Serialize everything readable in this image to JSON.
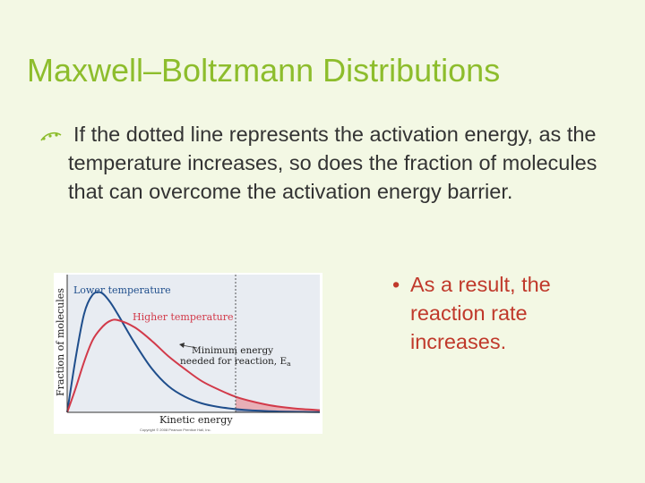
{
  "slide": {
    "title": "Maxwell–Boltzmann Distributions",
    "main_bullet": "If the dotted line represents the activation energy, as the temperature increases, so does the fraction of molecules that can overcome the activation energy barrier.",
    "sub_bullet": "As a result, the reaction rate increases.",
    "bullet_char": "•",
    "colors": {
      "title": "#8dbd2c",
      "body_text": "#333333",
      "sub_text": "#c0392b",
      "background": "#f3f8e4"
    }
  },
  "chart_data": {
    "type": "line",
    "title": "",
    "xlabel": "Kinetic energy",
    "ylabel": "Fraction of molecules",
    "series": [
      {
        "name": "Lower temperature",
        "color": "#1f4e8c",
        "x": [
          0,
          0.25,
          0.5,
          0.75,
          1.0,
          1.25,
          1.5,
          2.0,
          2.5,
          3.0,
          3.5,
          4.0,
          4.5,
          5.0,
          5.5,
          6.0,
          6.5,
          7.0,
          7.5
        ],
        "y": [
          0,
          0.45,
          0.82,
          0.98,
          1.0,
          0.93,
          0.82,
          0.58,
          0.37,
          0.22,
          0.13,
          0.075,
          0.045,
          0.027,
          0.016,
          0.01,
          0.006,
          0.004,
          0.002
        ]
      },
      {
        "name": "Higher temperature",
        "color": "#d23a4a",
        "x": [
          0,
          0.25,
          0.5,
          0.75,
          1.0,
          1.25,
          1.5,
          2.0,
          2.5,
          3.0,
          3.5,
          4.0,
          4.5,
          5.0,
          5.5,
          6.0,
          6.5,
          7.0,
          7.5
        ],
        "y": [
          0,
          0.2,
          0.42,
          0.6,
          0.7,
          0.76,
          0.77,
          0.71,
          0.6,
          0.47,
          0.36,
          0.26,
          0.19,
          0.13,
          0.09,
          0.06,
          0.04,
          0.027,
          0.018
        ]
      }
    ],
    "threshold": {
      "x": 5.0,
      "label_line1": "Minimum energy",
      "label_line2": "needed for reaction, E",
      "label_sub": "a"
    },
    "xlim": [
      0,
      7.5
    ],
    "ylim": [
      0,
      1.15
    ],
    "grid": false,
    "copyright": "Copyright © 2008 Pearson Prentice Hall, Inc.",
    "fill_colors": {
      "lower_tail": "#8fa6c7",
      "higher_tail": "#e8a5ab",
      "plot_bg": "#e8ecf2"
    }
  }
}
